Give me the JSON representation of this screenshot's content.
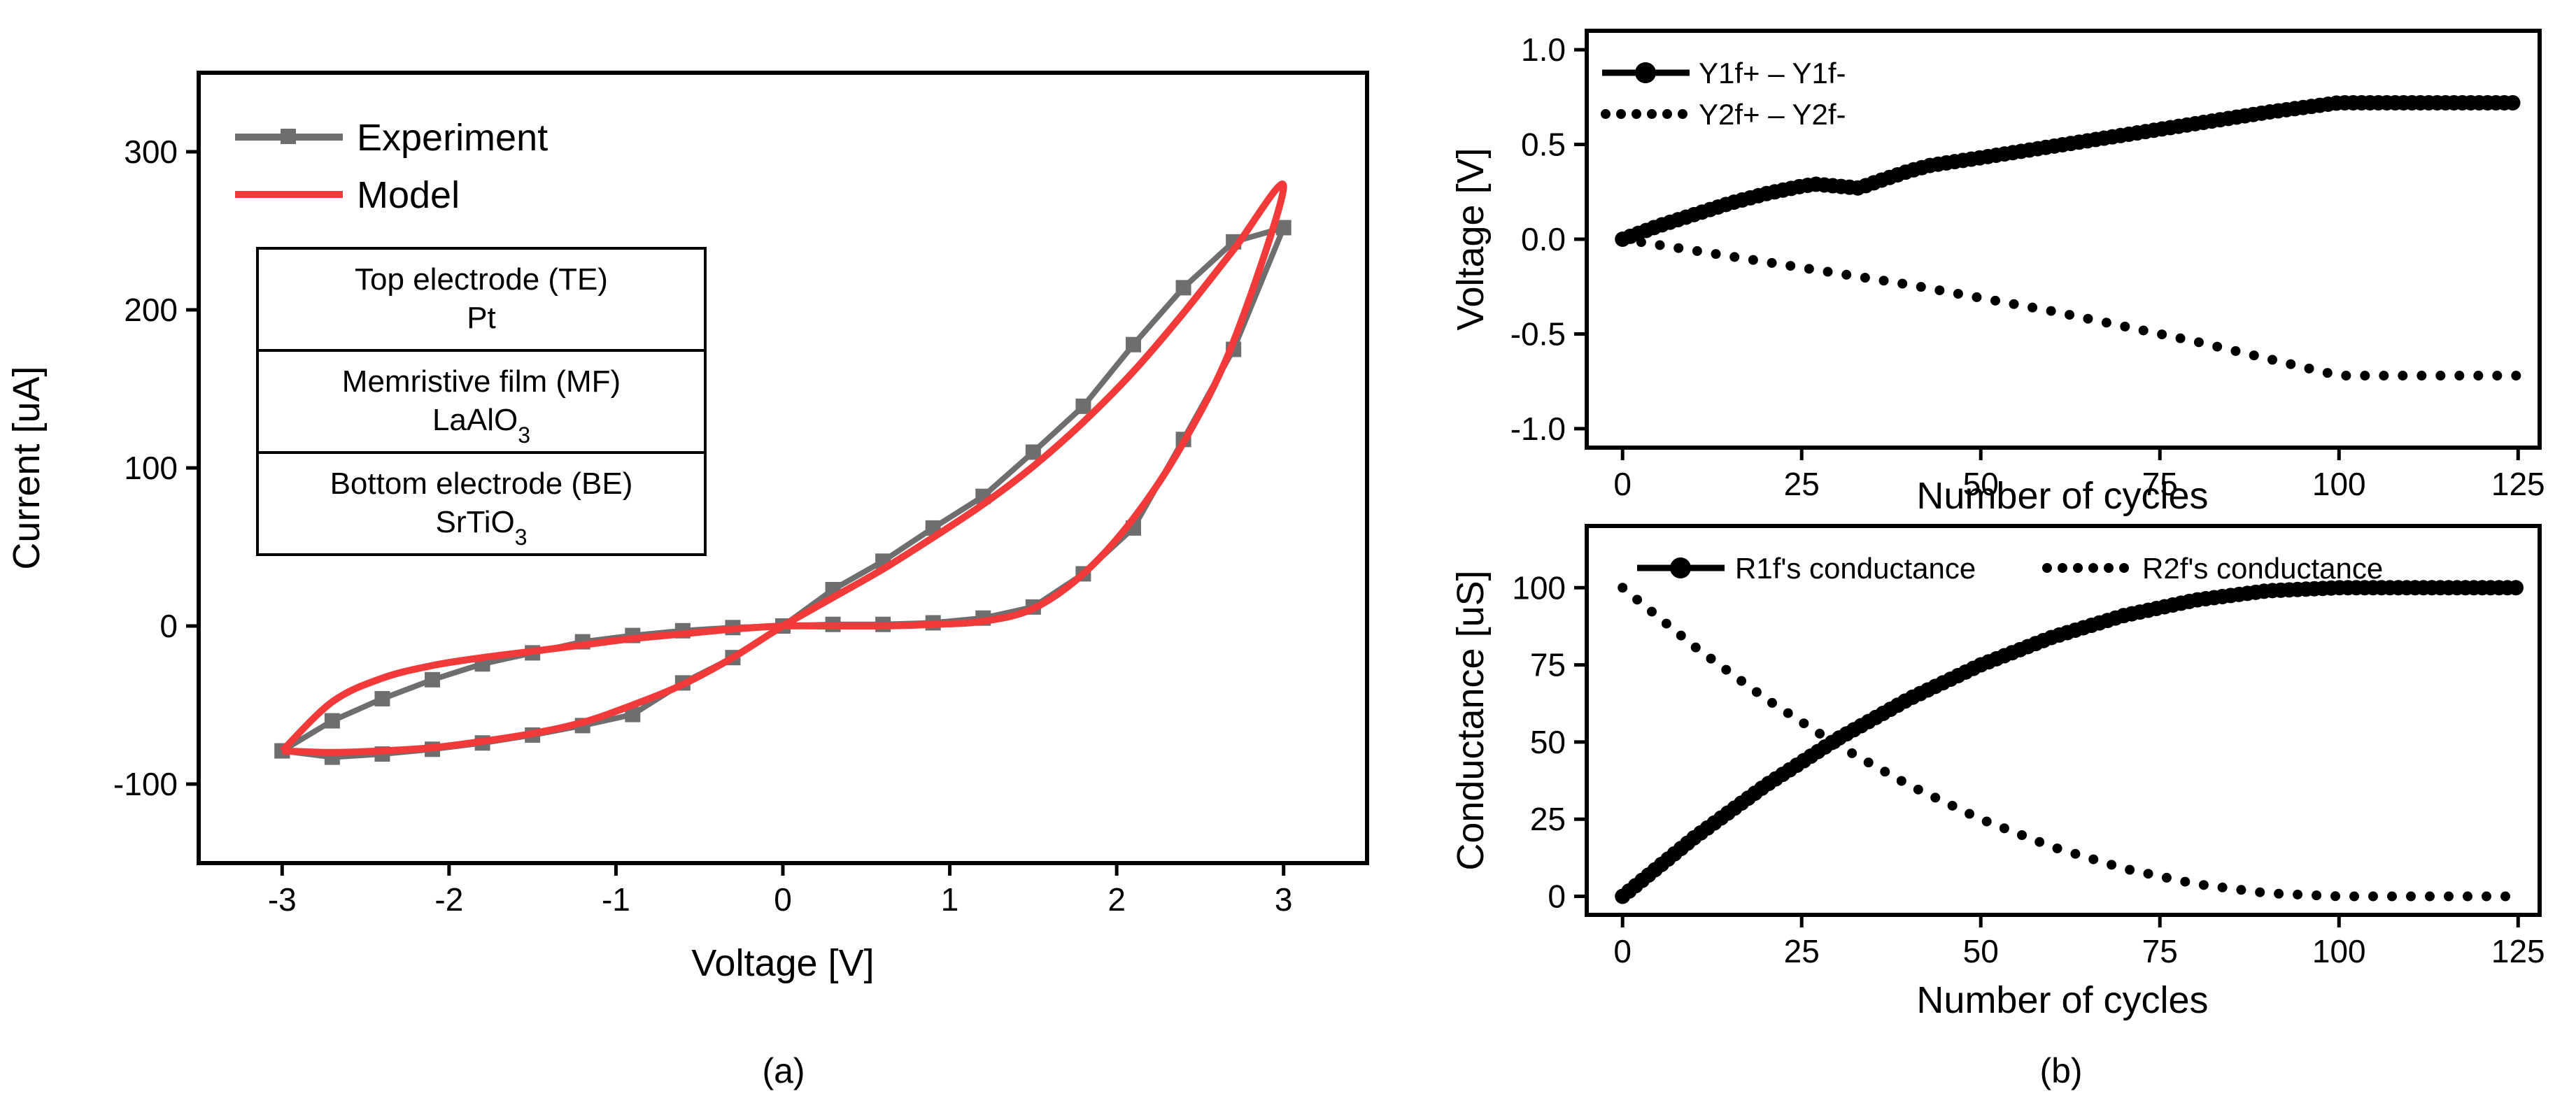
{
  "chart_data": [
    {
      "id": "a",
      "type": "line",
      "caption": "(a)",
      "xlabel": "Voltage [V]",
      "ylabel": "Current [uA]",
      "xlim": [
        -3.5,
        3.5
      ],
      "ylim": [
        -150,
        350
      ],
      "xticks": [
        -3,
        -2,
        -1,
        0,
        1,
        2,
        3
      ],
      "xtick_labels": [
        "-3",
        "-2",
        "-1",
        "0",
        "1",
        "2",
        "3"
      ],
      "yticks": [
        -100,
        0,
        100,
        200,
        300
      ],
      "ytick_labels": [
        "-100",
        "0",
        "100",
        "200",
        "300"
      ],
      "legend": {
        "experiment_label": "Experiment",
        "model_label": "Model",
        "experiment_color": "#6e6e6e",
        "model_color": "#f23a3a"
      },
      "table": {
        "rows": [
          {
            "line1": "Top electrode (TE)",
            "line2": "Pt",
            "sub": ""
          },
          {
            "line1": "Memristive film (MF)",
            "line2": "LaAlO",
            "sub": "3"
          },
          {
            "line1": "Bottom electrode (BE)",
            "line2": "SrTiO",
            "sub": "3"
          }
        ]
      },
      "series": [
        {
          "name": "Experiment",
          "x": [
            -3.0,
            -2.7,
            -2.4,
            -2.1,
            -1.8,
            -1.5,
            -1.2,
            -0.9,
            -0.6,
            -0.3,
            0.0,
            0.3,
            0.6,
            0.9,
            1.2,
            1.5,
            1.8,
            2.1,
            2.4,
            2.7,
            3.0,
            2.7,
            2.4,
            2.1,
            1.8,
            1.5,
            1.2,
            0.9,
            0.6,
            0.3,
            0.0,
            -0.3,
            -0.6,
            -0.9,
            -1.2,
            -1.5,
            -1.8,
            -2.1,
            -2.4,
            -2.7,
            -3.0
          ],
          "y": [
            -79,
            -83,
            -81,
            -78,
            -74,
            -69,
            -63,
            -56,
            -36,
            -20,
            0,
            23,
            41,
            62,
            82,
            110,
            139,
            178,
            214,
            243,
            252,
            175,
            118,
            62,
            33,
            12,
            5,
            2,
            1,
            1,
            0,
            -1,
            -3,
            -6,
            -10,
            -17,
            -24,
            -34,
            -46,
            -60,
            -79
          ]
        },
        {
          "name": "Model",
          "x": [
            -3.0,
            -2.7,
            -2.4,
            -2.1,
            -1.8,
            -1.5,
            -1.2,
            -0.9,
            -0.6,
            -0.3,
            0.0,
            0.3,
            0.6,
            0.9,
            1.2,
            1.5,
            1.8,
            2.1,
            2.4,
            2.7,
            3.0,
            2.7,
            2.4,
            2.1,
            1.8,
            1.5,
            1.2,
            0.9,
            0.6,
            0.3,
            0.0,
            -0.3,
            -0.6,
            -0.9,
            -1.2,
            -1.5,
            -1.8,
            -2.1,
            -2.4,
            -2.7,
            -3.0
          ],
          "y": [
            -79,
            -80,
            -79,
            -77,
            -73,
            -68,
            -61,
            -50,
            -37,
            -20,
            0,
            18,
            36,
            56,
            77,
            101,
            129,
            161,
            198,
            238,
            278,
            180,
            116,
            68,
            33,
            11,
            3,
            1,
            0,
            0,
            0,
            -2,
            -5,
            -8,
            -12,
            -16,
            -20,
            -25,
            -33,
            -48,
            -79
          ]
        }
      ]
    },
    {
      "id": "b-top",
      "type": "line",
      "xlabel": "Number of cycles",
      "ylabel": "Voltage [V]",
      "xlim": [
        -5,
        128
      ],
      "ylim": [
        -1.1,
        1.1
      ],
      "xticks": [
        0,
        25,
        50,
        75,
        100,
        125
      ],
      "xtick_labels": [
        "0",
        "25",
        "50",
        "75",
        "100",
        "125"
      ],
      "yticks": [
        -1.0,
        -0.5,
        0.0,
        0.5,
        1.0
      ],
      "ytick_labels": [
        "-1.0",
        "-0.5",
        "0.0",
        "0.5",
        "1.0"
      ],
      "series": [
        {
          "name": "Y1f+ – Y1f-",
          "style": "solid",
          "x": [
            0,
            5,
            10,
            15,
            20,
            25,
            27,
            30,
            33,
            36,
            40,
            43,
            50,
            60,
            70,
            80,
            90,
            100,
            110,
            125
          ],
          "y": [
            0.0,
            0.07,
            0.13,
            0.19,
            0.24,
            0.28,
            0.29,
            0.28,
            0.27,
            0.31,
            0.36,
            0.39,
            0.43,
            0.49,
            0.55,
            0.61,
            0.67,
            0.72,
            0.72,
            0.72
          ]
        },
        {
          "name": "Y2f+ – Y2f-",
          "style": "dotted",
          "x": [
            0,
            10,
            20,
            30,
            40,
            50,
            60,
            70,
            80,
            90,
            100,
            110,
            125
          ],
          "y": [
            0.0,
            -0.06,
            -0.12,
            -0.18,
            -0.24,
            -0.31,
            -0.38,
            -0.46,
            -0.54,
            -0.63,
            -0.72,
            -0.72,
            -0.72
          ]
        }
      ]
    },
    {
      "id": "b-bottom",
      "type": "line",
      "caption": "(b)",
      "xlabel": "Number of cycles",
      "ylabel": "Conductance [uS]",
      "xlim": [
        -5,
        128
      ],
      "ylim": [
        -6,
        120
      ],
      "xticks": [
        0,
        25,
        50,
        75,
        100,
        125
      ],
      "xtick_labels": [
        "0",
        "25",
        "50",
        "75",
        "100",
        "125"
      ],
      "yticks": [
        0,
        25,
        50,
        75,
        100
      ],
      "ytick_labels": [
        "0",
        "25",
        "50",
        "75",
        "100"
      ],
      "series": [
        {
          "name": "R1f's conductance",
          "style": "solid",
          "x": [
            0,
            10,
            20,
            30,
            40,
            50,
            60,
            70,
            80,
            90,
            100,
            110,
            125
          ],
          "y": [
            0,
            19,
            36,
            51,
            64,
            75,
            84,
            91,
            96,
            99,
            100,
            100,
            100
          ]
        },
        {
          "name": "R2f's conductance",
          "style": "dotted",
          "x": [
            0,
            10,
            20,
            30,
            40,
            50,
            60,
            70,
            80,
            90,
            100,
            110,
            125
          ],
          "y": [
            100,
            81,
            64,
            49,
            36,
            25,
            16,
            9,
            4,
            1,
            0,
            0,
            0
          ]
        }
      ]
    }
  ]
}
